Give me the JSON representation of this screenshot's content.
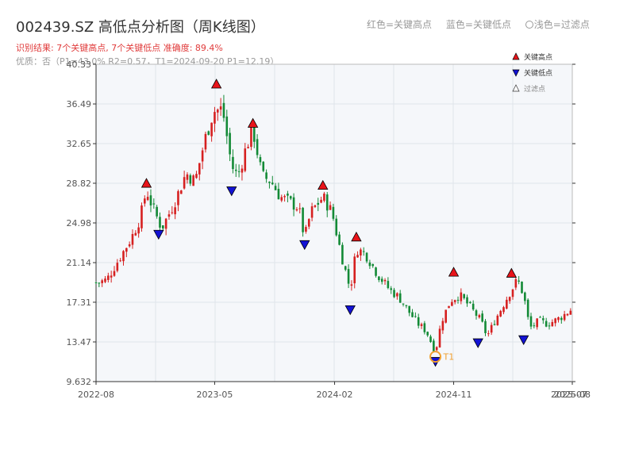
{
  "header": {
    "title": "002439.SZ 高低点分析图（周K线图）",
    "result": "识别结果: 7个关键高点, 7个关键低点  准确度: 89.4%",
    "quality": "优质：否（P1=43.0%  R2=0.57，T1=2024-09-20 P1=12.19）"
  },
  "top_legend": {
    "red_label": "红色=关键高点",
    "blue_label": "蓝色=关键低点",
    "light_label": "浅色=过滤点"
  },
  "colors": {
    "up": "#d62020",
    "down": "#138a36",
    "high_marker": "#e8141a",
    "low_marker": "#1212d4",
    "t1_marker": "#f0a030",
    "plot_bg": "#f5f7fa",
    "grid": "#e0e4ea"
  },
  "chart_data": {
    "type": "candlestick",
    "title": "002439.SZ 高低点分析图（周K线图）",
    "y_ticks": [
      "9.632",
      "13.47",
      "17.31",
      "21.14",
      "24.98",
      "28.82",
      "32.65",
      "36.49",
      "40.33"
    ],
    "ylim": [
      9.632,
      40.33
    ],
    "x_ticks": [
      "2022-08",
      "2023-05",
      "2024-02",
      "2024-11",
      "2025-08"
    ],
    "x_tick_extra": "2025-07",
    "xlim": [
      "2022-08",
      "2025-08"
    ],
    "legend": {
      "high": "关键高点",
      "low": "关键低点",
      "filtered": "过滤点",
      "placement": "top-right"
    },
    "grid": true,
    "close_path": [
      [
        "2022-08-05",
        19.2
      ],
      [
        "2022-08-26",
        19.5
      ],
      [
        "2022-09-23",
        21.5
      ],
      [
        "2022-10-21",
        23.5
      ],
      [
        "2022-11-11",
        25.5
      ],
      [
        "2022-11-25",
        28.2
      ],
      [
        "2022-12-09",
        26.5
      ],
      [
        "2022-12-30",
        24.5
      ],
      [
        "2023-01-13",
        25.6
      ],
      [
        "2023-02-03",
        27.5
      ],
      [
        "2023-02-24",
        29.8
      ],
      [
        "2023-03-17",
        29.0
      ],
      [
        "2023-04-07",
        32.8
      ],
      [
        "2023-04-28",
        35.8
      ],
      [
        "2023-05-19",
        36.0
      ],
      [
        "2023-06-09",
        30.5
      ],
      [
        "2023-06-23",
        29.5
      ],
      [
        "2023-07-14",
        32.5
      ],
      [
        "2023-07-28",
        34.0
      ],
      [
        "2023-08-18",
        29.5
      ],
      [
        "2023-09-08",
        29.0
      ],
      [
        "2023-09-29",
        27.5
      ],
      [
        "2023-10-20",
        27.0
      ],
      [
        "2023-11-10",
        26.5
      ],
      [
        "2023-11-24",
        23.5
      ],
      [
        "2023-12-08",
        26.0
      ],
      [
        "2024-01-05",
        27.5
      ],
      [
        "2024-01-26",
        26.0
      ],
      [
        "2024-02-16",
        22.0
      ],
      [
        "2024-03-08",
        18.5
      ],
      [
        "2024-03-22",
        22.5
      ],
      [
        "2024-04-12",
        22.0
      ],
      [
        "2024-05-10",
        20.0
      ],
      [
        "2024-06-07",
        18.5
      ],
      [
        "2024-06-28",
        17.8
      ],
      [
        "2024-07-19",
        16.5
      ],
      [
        "2024-08-09",
        15.3
      ],
      [
        "2024-08-30",
        14.5
      ],
      [
        "2024-09-20",
        12.5
      ],
      [
        "2024-10-04",
        15.5
      ],
      [
        "2024-10-25",
        17.5
      ],
      [
        "2024-11-15",
        18.0
      ],
      [
        "2024-12-06",
        17.0
      ],
      [
        "2025-01-03",
        15.5
      ],
      [
        "2025-01-17",
        14.0
      ],
      [
        "2025-02-07",
        15.8
      ],
      [
        "2025-03-07",
        18.0
      ],
      [
        "2025-03-28",
        19.5
      ],
      [
        "2025-04-11",
        18.0
      ],
      [
        "2025-04-25",
        14.8
      ],
      [
        "2025-05-16",
        15.5
      ],
      [
        "2025-06-06",
        15.2
      ],
      [
        "2025-07-04",
        15.8
      ],
      [
        "2025-08-01",
        16.7
      ]
    ],
    "key_highs": [
      [
        "2022-11-25",
        28.2
      ],
      [
        "2023-05-05",
        37.8
      ],
      [
        "2023-07-28",
        34.0
      ],
      [
        "2024-01-05",
        28.0
      ],
      [
        "2024-03-22",
        23.0
      ],
      [
        "2024-11-01",
        19.6
      ],
      [
        "2025-03-14",
        19.5
      ]
    ],
    "key_lows": [
      [
        "2022-12-23",
        24.5
      ],
      [
        "2023-06-09",
        28.7
      ],
      [
        "2023-11-24",
        23.5
      ],
      [
        "2024-03-08",
        17.2
      ],
      [
        "2024-09-20",
        12.2
      ],
      [
        "2024-12-27",
        14.0
      ],
      [
        "2025-04-11",
        14.3
      ]
    ],
    "t1_point": {
      "date": "2024-09-20",
      "value": 12.19,
      "label": "T1"
    }
  }
}
